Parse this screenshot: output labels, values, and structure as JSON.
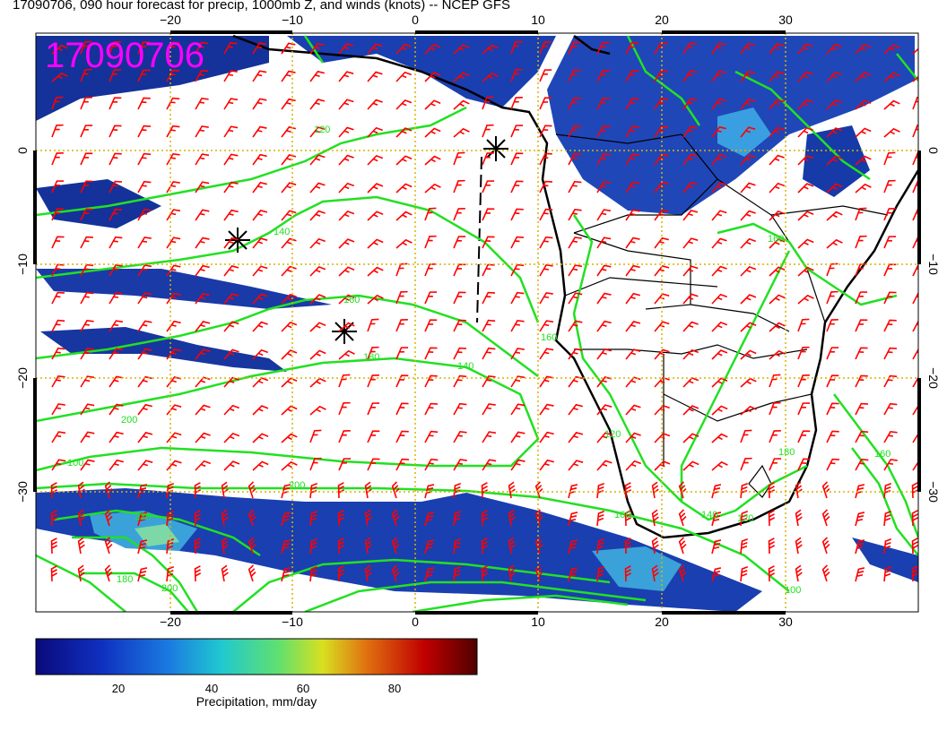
{
  "title": "17090706, 090 hour forecast for precip, 1000mb Z, and winds (knots) -- NCEP GFS",
  "stamp": "17090706",
  "map": {
    "lon_ticks": [
      "−20",
      "−10",
      "0",
      "10",
      "20",
      "30"
    ],
    "lat_ticks": [
      "0",
      "−10",
      "−20",
      "−30"
    ],
    "contour_labels": [
      "120",
      "140",
      "160",
      "180",
      "200",
      "160",
      "140",
      "120",
      "160",
      "180",
      "160",
      "140",
      "120",
      "200",
      "220",
      "180",
      "200",
      "100",
      "100",
      "160"
    ],
    "colors": {
      "wind_barbs": "#ff0000",
      "contours": "#00ee00",
      "coastline": "#000000",
      "stamp": "#ff00ff",
      "grid": "#d8b400"
    },
    "markers": [
      "asterisk",
      "asterisk",
      "asterisk"
    ]
  },
  "colorbar": {
    "ticks": [
      "20",
      "40",
      "60",
      "80"
    ],
    "label": "Precipitation, mm/day",
    "colors": [
      "#0a0a7a",
      "#1030c0",
      "#1a7ae0",
      "#20c8d0",
      "#60e070",
      "#d8e020",
      "#e07010",
      "#c00000",
      "#500000"
    ]
  }
}
